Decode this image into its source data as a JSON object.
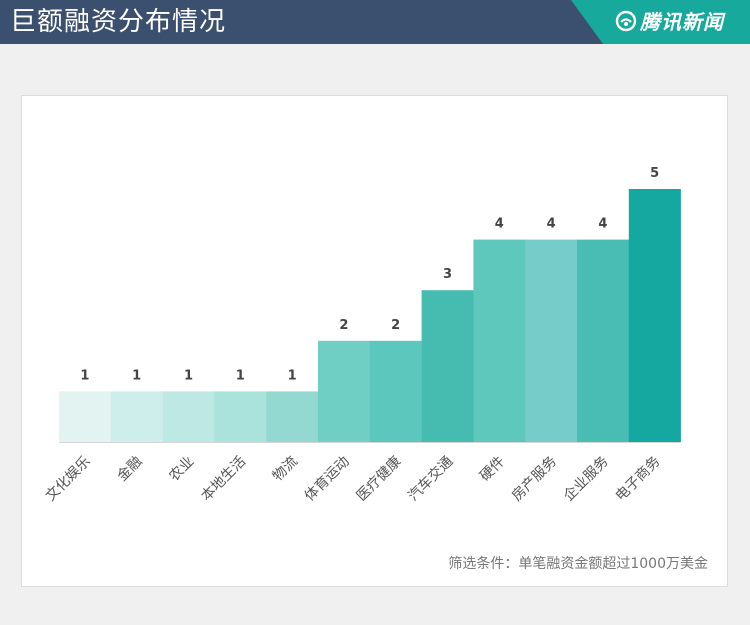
{
  "header": {
    "title": "巨额融资分布情况",
    "brand": "腾讯新闻"
  },
  "colors": {
    "header_bg": "#3b4f6f",
    "brand_bg": "#17a99b",
    "bar_colors": [
      "#e2f3f1",
      "#cdeeea",
      "#bde8e3",
      "#aae2dc",
      "#93d9d1",
      "#6fcfc5",
      "#5cc8bd",
      "#46bbb0",
      "#5ec8bd",
      "#75ccc8",
      "#49bcb3",
      "#14a8a0"
    ]
  },
  "chart_data": {
    "type": "bar",
    "title": "巨额融资分布情况",
    "xlabel": "",
    "ylabel": "",
    "categories": [
      "文化娱乐",
      "金融",
      "农业",
      "本地生活",
      "物流",
      "体育运动",
      "医疗健康",
      "汽车交通",
      "硬件",
      "房产服务",
      "企业服务",
      "电子商务"
    ],
    "values": [
      1,
      1,
      1,
      1,
      1,
      2,
      2,
      3,
      4,
      4,
      4,
      5
    ],
    "ylim": [
      0,
      5
    ],
    "grid": false,
    "data_labels": true
  },
  "footnote": "筛选条件：单笔融资金额超过1000万美金"
}
